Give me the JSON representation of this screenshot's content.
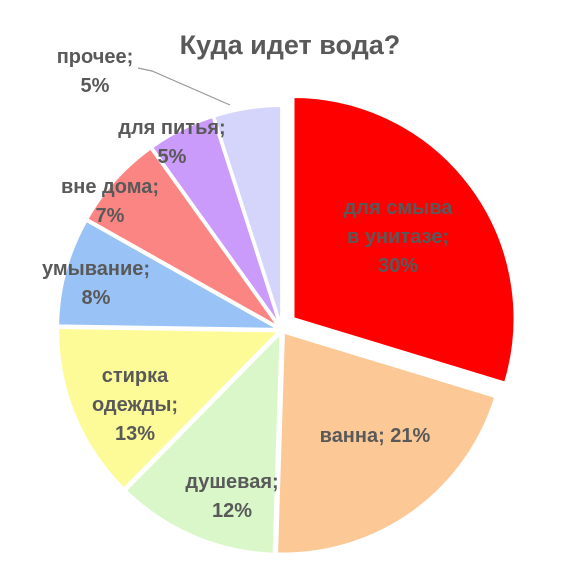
{
  "chart_data": {
    "type": "pie",
    "title": "Куда идет вода?",
    "slices": [
      {
        "label_lines": [
          "для смыва",
          "в унитазе;",
          "30%"
        ],
        "value": 30,
        "color": "#ff0000"
      },
      {
        "label_lines": [
          "ванна; 21%"
        ],
        "value": 21,
        "color": "#fcc896"
      },
      {
        "label_lines": [
          "душевая;",
          "12%"
        ],
        "value": 12,
        "color": "#d9f7c9"
      },
      {
        "label_lines": [
          "стирка",
          "одежды;",
          "13%"
        ],
        "value": 13,
        "color": "#fdfb97"
      },
      {
        "label_lines": [
          "умывание;",
          "8%"
        ],
        "value": 8,
        "color": "#99c3f6"
      },
      {
        "label_lines": [
          "вне дома;",
          "7%"
        ],
        "value": 7,
        "color": "#fb8582"
      },
      {
        "label_lines": [
          "для питья;",
          "5%"
        ],
        "value": 5,
        "color": "#ca9bfb"
      },
      {
        "label_lines": [
          "прочее;",
          "5%"
        ],
        "value": 5,
        "color": "#d5d5fb"
      }
    ]
  }
}
